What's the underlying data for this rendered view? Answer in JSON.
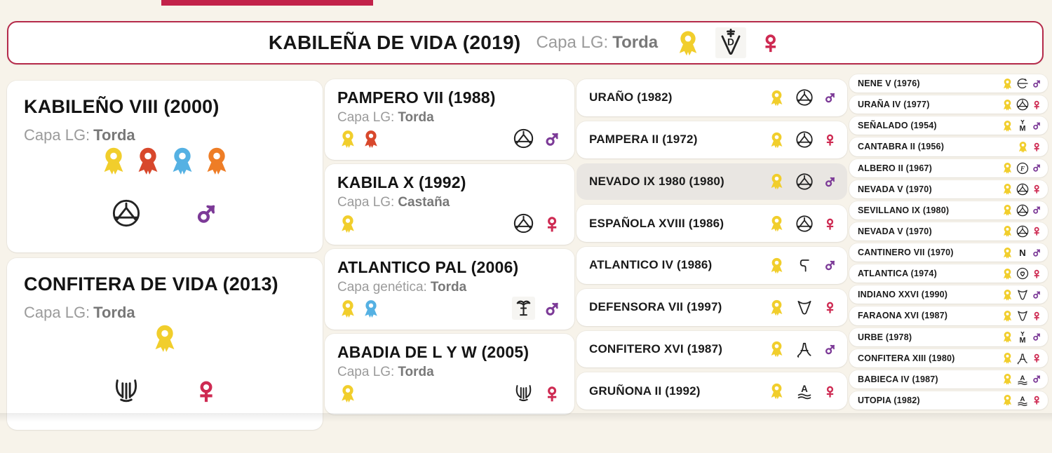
{
  "colors": {
    "yellow": "#F1CE2C",
    "red": "#D8482C",
    "blue": "#55B1E3",
    "orange": "#EE7D26",
    "male": "#7C3A97",
    "female": "#CE2A52",
    "accent": "#B52A4A",
    "topbar": "#C2224A",
    "highlight": "#E9E6E2"
  },
  "icons": {
    "male_symbol": "♂",
    "female_symbol": "♀"
  },
  "header": {
    "name": "KABILEÑA DE VIDA (2019)",
    "capa_label": "Capa LG:",
    "capa_value": "Torda",
    "rosettes": [
      "yellow"
    ],
    "brand": "v-d-cross",
    "sex": "female"
  },
  "columns": [
    {
      "generation": 1,
      "variant": "large",
      "entries": [
        {
          "name": "KABILEÑO VIII (2000)",
          "capa_label": "Capa LG:",
          "capa_value": "Torda",
          "rosettes": [
            "yellow",
            "red",
            "blue",
            "orange"
          ],
          "brand": "circle-hanger",
          "sex": "male"
        },
        {
          "name": "CONFITERA DE VIDA (2013)",
          "capa_label": "Capa LG:",
          "capa_value": "Torda",
          "rosettes": [
            "yellow"
          ],
          "brand": "lyre",
          "sex": "female"
        }
      ]
    },
    {
      "generation": 2,
      "variant": "medium",
      "entries": [
        {
          "name": "PAMPERO VII (1988)",
          "capa_label": "Capa LG:",
          "capa_value": "Torda",
          "rosettes": [
            "yellow",
            "red"
          ],
          "brand": "circle-hanger",
          "sex": "male"
        },
        {
          "name": "KABILA X (1992)",
          "capa_label": "Capa LG:",
          "capa_value": "Castaña",
          "rosettes": [
            "yellow"
          ],
          "brand": "circle-hanger",
          "sex": "female"
        },
        {
          "name": "ATLANTICO PAL (2006)",
          "capa_label": "Capa genética:",
          "capa_value": "Torda",
          "rosettes": [
            "yellow",
            "blue"
          ],
          "brand": "palm",
          "sex": "male",
          "brand_boxed": true
        },
        {
          "name": "ABADIA DE L Y W (2005)",
          "capa_label": "Capa LG:",
          "capa_value": "Torda",
          "rosettes": [
            "yellow"
          ],
          "brand": "lyre",
          "sex": "female"
        }
      ]
    },
    {
      "generation": 3,
      "variant": "small",
      "entries": [
        {
          "name": "URAÑO (1982)",
          "rosettes": [
            "yellow"
          ],
          "brand": "circle-hanger",
          "sex": "male"
        },
        {
          "name": "PAMPERA II (1972)",
          "rosettes": [
            "yellow"
          ],
          "brand": "circle-hanger",
          "sex": "female"
        },
        {
          "name": "NEVADO IX 1980 (1980)",
          "rosettes": [
            "yellow"
          ],
          "brand": "circle-hanger",
          "sex": "male",
          "highlight": true
        },
        {
          "name": "ESPAÑOLA XVIII (1986)",
          "rosettes": [
            "yellow"
          ],
          "brand": "circle-hanger",
          "sex": "female"
        },
        {
          "name": "ATLANTICO IV (1986)",
          "rosettes": [
            "yellow"
          ],
          "brand": "hook",
          "sex": "male"
        },
        {
          "name": "DEFENSORA VII (1997)",
          "rosettes": [
            "yellow"
          ],
          "brand": "v-shield",
          "sex": "female"
        },
        {
          "name": "CONFITERO XVI (1987)",
          "rosettes": [
            "yellow"
          ],
          "brand": "a-fancy",
          "sex": "male"
        },
        {
          "name": "GRUÑONA II (1992)",
          "rosettes": [
            "yellow"
          ],
          "brand": "a-waves",
          "sex": "female"
        }
      ]
    },
    {
      "generation": 4,
      "variant": "tiny",
      "entries": [
        {
          "name": "NENE V (1976)",
          "rosettes": [
            "yellow"
          ],
          "brand": "c-bar",
          "sex": "male"
        },
        {
          "name": "URAÑA IV (1977)",
          "rosettes": [
            "yellow"
          ],
          "brand": "circle-hanger",
          "sex": "female"
        },
        {
          "name": "SEÑALADO (1954)",
          "rosettes": [
            "yellow"
          ],
          "brand": "m-y",
          "sex": "male"
        },
        {
          "name": "CANTABRA II (1956)",
          "rosettes": [
            "yellow"
          ],
          "brand": null,
          "sex": "female"
        },
        {
          "name": "ALBERO II (1967)",
          "rosettes": [
            "yellow"
          ],
          "brand": "circle-f",
          "sex": "male"
        },
        {
          "name": "NEVADA V (1970)",
          "rosettes": [
            "yellow"
          ],
          "brand": "circle-hanger",
          "sex": "female"
        },
        {
          "name": "SEVILLANO IX (1980)",
          "rosettes": [
            "yellow"
          ],
          "brand": "circle-hanger",
          "sex": "male"
        },
        {
          "name": "NEVADA V (1970)",
          "rosettes": [
            "yellow"
          ],
          "brand": "circle-hanger",
          "sex": "female"
        },
        {
          "name": "CANTINERO VII (1970)",
          "rosettes": [
            "yellow"
          ],
          "brand": "n",
          "sex": "male"
        },
        {
          "name": "ATLANTICA (1974)",
          "rosettes": [
            "yellow"
          ],
          "brand": "circle-heart",
          "sex": "female"
        },
        {
          "name": "INDIANO XXVI (1990)",
          "rosettes": [
            "yellow"
          ],
          "brand": "v-shield",
          "sex": "male"
        },
        {
          "name": "FARAONA XVI (1987)",
          "rosettes": [
            "yellow"
          ],
          "brand": "v-shield",
          "sex": "female"
        },
        {
          "name": "URBE (1978)",
          "rosettes": [
            "yellow"
          ],
          "brand": "m-y",
          "sex": "male"
        },
        {
          "name": "CONFITERA XIII (1980)",
          "rosettes": [
            "yellow"
          ],
          "brand": "a-fancy",
          "sex": "female"
        },
        {
          "name": "BABIECA IV (1987)",
          "rosettes": [
            "yellow"
          ],
          "brand": "a-waves",
          "sex": "male"
        },
        {
          "name": "UTOPIA (1982)",
          "rosettes": [
            "yellow"
          ],
          "brand": "a-waves",
          "sex": "female"
        }
      ]
    }
  ]
}
